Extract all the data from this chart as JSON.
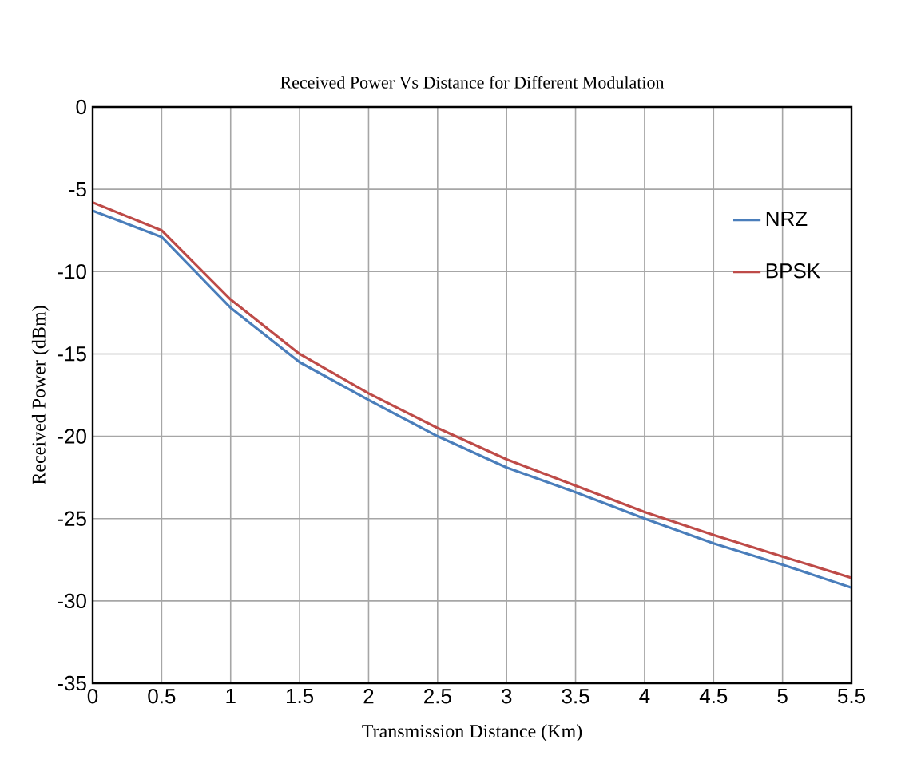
{
  "chart_data": {
    "type": "line",
    "title": "Received Power Vs Distance for  Different Modulation",
    "xlabel": "Transmission Distance (Km)",
    "ylabel": "Received Power (dBm)",
    "x": [
      0,
      0.5,
      1,
      1.5,
      2,
      2.5,
      3,
      3.5,
      4,
      4.5,
      5,
      5.5
    ],
    "series": [
      {
        "name": "NRZ",
        "color": "#4a7ebb",
        "values": [
          -6.3,
          -7.9,
          -12.2,
          -15.5,
          -17.8,
          -20,
          -21.9,
          -23.4,
          -25,
          -26.5,
          -27.8,
          -29.2
        ]
      },
      {
        "name": "BPSK",
        "color": "#be4b48",
        "values": [
          -5.8,
          -7.5,
          -11.7,
          -15,
          -17.4,
          -19.5,
          -21.4,
          -23,
          -24.6,
          -26,
          -27.3,
          -28.6
        ]
      }
    ],
    "xlim": [
      0,
      5.5
    ],
    "ylim": [
      -35,
      0
    ],
    "xticks": [
      0,
      0.5,
      1,
      1.5,
      2,
      2.5,
      3,
      3.5,
      4,
      4.5,
      5,
      5.5
    ],
    "yticks": [
      -35,
      -30,
      -25,
      -20,
      -15,
      -10,
      -5,
      0
    ],
    "grid": true,
    "legend": "top right",
    "marker": "none",
    "line_style": "solid"
  }
}
